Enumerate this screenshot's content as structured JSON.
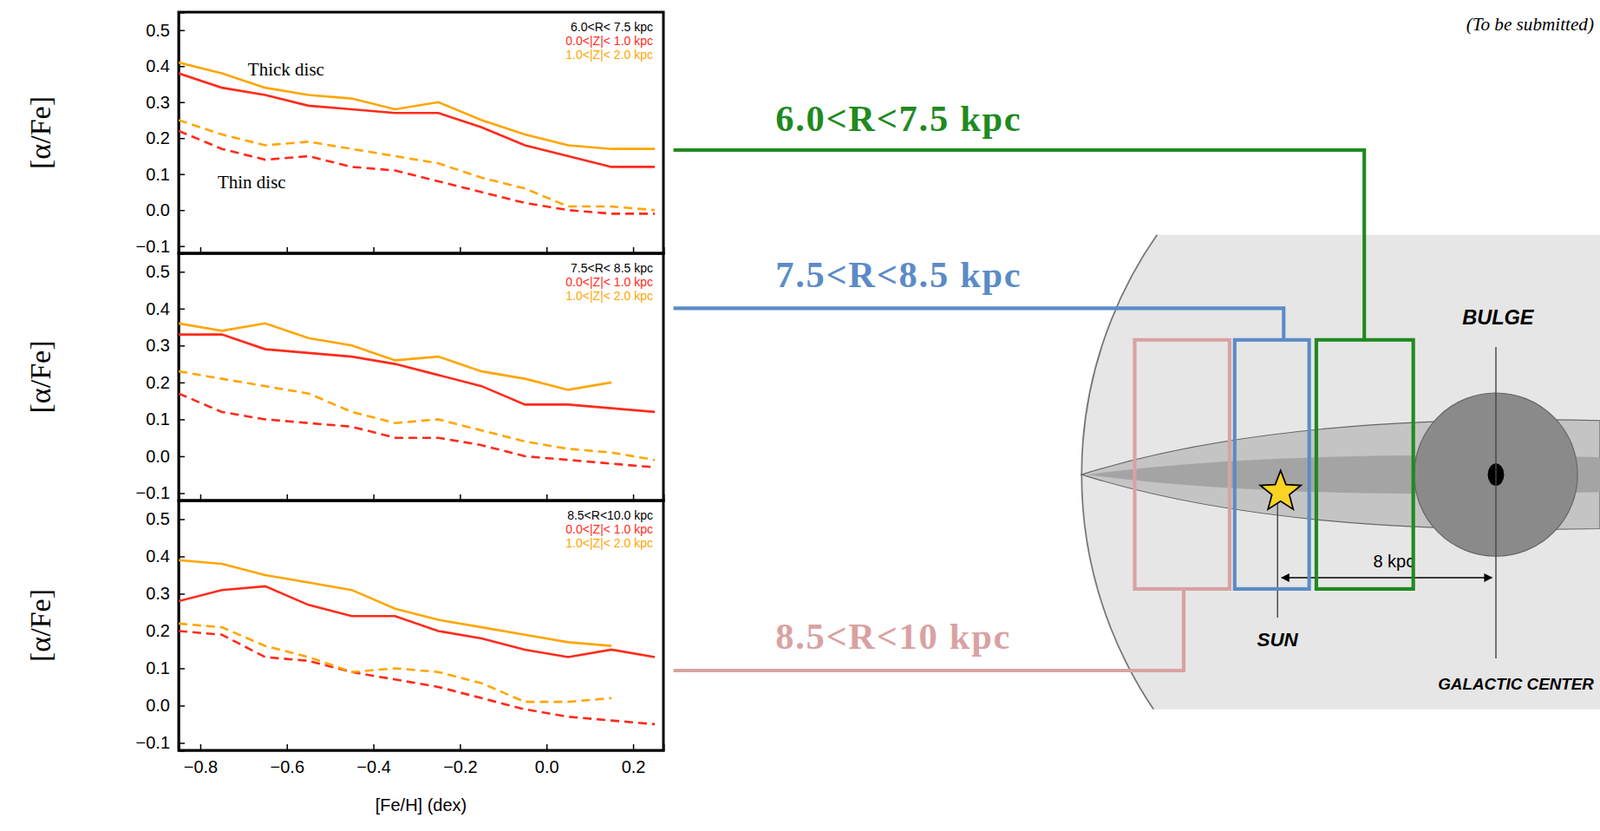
{
  "chart_data": [
    {
      "type": "line",
      "title": "6.0<R< 7.5 kpc",
      "y_label": "[α/Fe]",
      "x": [
        -0.85,
        -0.75,
        -0.65,
        -0.55,
        -0.45,
        -0.35,
        -0.25,
        -0.15,
        -0.05,
        0.05,
        0.15,
        0.25
      ],
      "xlim": [
        -0.85,
        0.27
      ],
      "xticks": [
        {
          "value": -0.8,
          "label": "−0.8"
        },
        {
          "value": -0.6,
          "label": "−0.6"
        },
        {
          "value": -0.4,
          "label": "−0.4"
        },
        {
          "value": -0.2,
          "label": "−0.2"
        },
        {
          "value": 0,
          "label": "0.0"
        },
        0.2
      ],
      "ylim": [
        -0.12,
        0.55
      ],
      "yticks": [
        {
          "value": -0.1,
          "label": "−0.1"
        },
        {
          "value": 0,
          "label": "0.0"
        },
        0.1,
        0.2,
        0.3,
        0.4,
        0.5
      ],
      "tick_labels": "y",
      "legend": "upper right",
      "grid": false,
      "annotations": [
        {
          "text": "Thick disc",
          "x": -0.69,
          "y": 0.375
        },
        {
          "text": "Thin disc",
          "x": -0.76,
          "y": 0.06
        }
      ],
      "series": [
        {
          "name": "0.0<|Z|< 1.0 kpc",
          "color": "#ff2a1a",
          "line_style": "solid",
          "values": [
            0.38,
            0.34,
            0.32,
            0.29,
            0.28,
            0.27,
            0.27,
            0.23,
            0.18,
            0.15,
            0.12,
            0.12
          ]
        },
        {
          "name": "1.0<|Z|< 2.0 kpc",
          "color": "#ffa500",
          "line_style": "solid",
          "values": [
            0.41,
            0.38,
            0.34,
            0.32,
            0.31,
            0.28,
            0.3,
            0.25,
            0.21,
            0.18,
            0.17,
            0.17
          ]
        },
        {
          "name": "0.0<|Z|< 1.0 kpc",
          "color": "#ff2a1a",
          "line_style": "dashed",
          "values": [
            0.22,
            0.17,
            0.14,
            0.15,
            0.12,
            0.11,
            0.08,
            0.05,
            0.02,
            0.0,
            -0.01,
            -0.01
          ]
        },
        {
          "name": "1.0<|Z|< 2.0 kpc",
          "color": "#ffa500",
          "line_style": "dashed",
          "values": [
            0.25,
            0.21,
            0.18,
            0.19,
            0.17,
            0.15,
            0.13,
            0.09,
            0.06,
            0.01,
            0.01,
            0.0
          ]
        }
      ]
    },
    {
      "type": "line",
      "title": "7.5<R< 8.5 kpc",
      "y_label": "[α/Fe]",
      "x": [
        -0.85,
        -0.75,
        -0.65,
        -0.55,
        -0.45,
        -0.35,
        -0.25,
        -0.15,
        -0.05,
        0.05,
        0.15,
        0.25
      ],
      "xlim": [
        -0.85,
        0.27
      ],
      "xticks": [
        {
          "value": -0.8,
          "label": "−0.8"
        },
        {
          "value": -0.6,
          "label": "−0.6"
        },
        {
          "value": -0.4,
          "label": "−0.4"
        },
        {
          "value": -0.2,
          "label": "−0.2"
        },
        {
          "value": 0,
          "label": "0.0"
        },
        0.2
      ],
      "ylim": [
        -0.12,
        0.55
      ],
      "yticks": [
        {
          "value": -0.1,
          "label": "−0.1"
        },
        {
          "value": 0,
          "label": "0.0"
        },
        0.1,
        0.2,
        0.3,
        0.4,
        0.5
      ],
      "tick_labels": "y",
      "legend": "upper right",
      "grid": false,
      "series": [
        {
          "name": "0.0<|Z|< 1.0 kpc",
          "color": "#ff2a1a",
          "line_style": "solid",
          "values": [
            0.33,
            0.33,
            0.29,
            0.28,
            0.27,
            0.25,
            0.22,
            0.19,
            0.14,
            0.14,
            0.13,
            0.12
          ]
        },
        {
          "name": "1.0<|Z|< 2.0 kpc",
          "color": "#ffa500",
          "line_style": "solid",
          "values": [
            0.36,
            0.34,
            0.36,
            0.32,
            0.3,
            0.26,
            0.27,
            0.23,
            0.21,
            0.18,
            0.2,
            null
          ]
        },
        {
          "name": "0.0<|Z|< 1.0 kpc",
          "color": "#ff2a1a",
          "line_style": "dashed",
          "values": [
            0.17,
            0.12,
            0.1,
            0.09,
            0.08,
            0.05,
            0.05,
            0.03,
            0.0,
            -0.01,
            -0.02,
            -0.03
          ]
        },
        {
          "name": "1.0<|Z|< 2.0 kpc",
          "color": "#ffa500",
          "line_style": "dashed",
          "values": [
            0.23,
            0.21,
            0.19,
            0.17,
            0.12,
            0.09,
            0.1,
            0.07,
            0.04,
            0.02,
            0.01,
            -0.01
          ]
        }
      ]
    },
    {
      "type": "line",
      "title": "8.5<R<10.0 kpc",
      "y_label": "[α/Fe]",
      "x_label": "[Fe/H] (dex)",
      "x": [
        -0.85,
        -0.75,
        -0.65,
        -0.55,
        -0.45,
        -0.35,
        -0.25,
        -0.15,
        -0.05,
        0.05,
        0.15,
        0.25
      ],
      "xlim": [
        -0.85,
        0.27
      ],
      "xticks": [
        {
          "value": -0.8,
          "label": "−0.8"
        },
        {
          "value": -0.6,
          "label": "−0.6"
        },
        {
          "value": -0.4,
          "label": "−0.4"
        },
        {
          "value": -0.2,
          "label": "−0.2"
        },
        {
          "value": 0,
          "label": "0.0"
        },
        0.2
      ],
      "ylim": [
        -0.12,
        0.55
      ],
      "yticks": [
        {
          "value": -0.1,
          "label": "−0.1"
        },
        {
          "value": 0,
          "label": "0.0"
        },
        0.1,
        0.2,
        0.3,
        0.4,
        0.5
      ],
      "legend": "upper right",
      "grid": false,
      "series": [
        {
          "name": "0.0<|Z|< 1.0 kpc",
          "color": "#ff2a1a",
          "line_style": "solid",
          "values": [
            0.28,
            0.31,
            0.32,
            0.27,
            0.24,
            0.24,
            0.2,
            0.18,
            0.15,
            0.13,
            0.15,
            0.13
          ]
        },
        {
          "name": "1.0<|Z|< 2.0 kpc",
          "color": "#ffa500",
          "line_style": "solid",
          "values": [
            0.39,
            0.38,
            0.35,
            0.33,
            0.31,
            0.26,
            0.23,
            0.21,
            0.19,
            0.17,
            0.16,
            null
          ]
        },
        {
          "name": "0.0<|Z|< 1.0 kpc",
          "color": "#ff2a1a",
          "line_style": "dashed",
          "values": [
            0.2,
            0.19,
            0.13,
            0.12,
            0.09,
            0.07,
            0.05,
            0.02,
            -0.01,
            -0.03,
            -0.04,
            -0.05
          ]
        },
        {
          "name": "1.0<|Z|< 2.0 kpc",
          "color": "#ffa500",
          "line_style": "dashed",
          "values": [
            0.22,
            0.21,
            0.16,
            0.13,
            0.09,
            0.1,
            0.09,
            0.06,
            0.01,
            0.01,
            0.02,
            null
          ]
        }
      ]
    }
  ],
  "diagram": {
    "note": "(To be submitted)",
    "regions": [
      {
        "label": "6.0<R<7.5 kpc",
        "color": "#1f8a1f"
      },
      {
        "label": "7.5<R<8.5 kpc",
        "color": "#5b8bc7"
      },
      {
        "label": "8.5<R<10 kpc",
        "color": "#d9a2a2"
      }
    ],
    "bulge": "BULGE",
    "sun": "SUN",
    "center": "GALACTIC CENTER",
    "distance": "8 kpc"
  }
}
